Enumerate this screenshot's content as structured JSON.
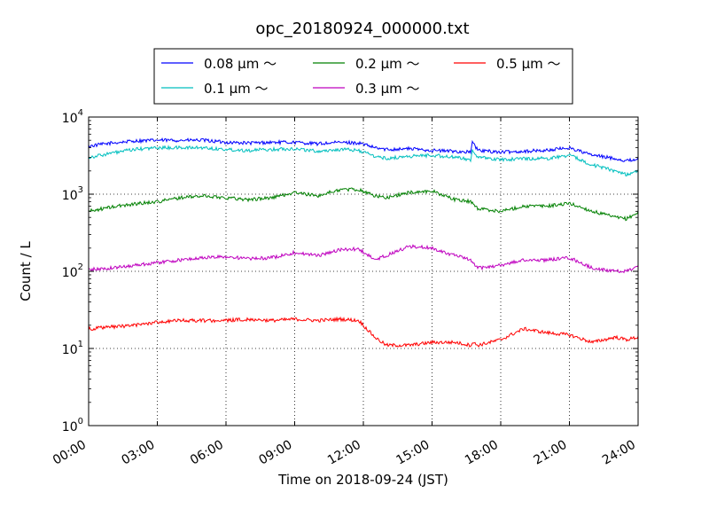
{
  "chart_data": {
    "type": "line",
    "title": "opc_20180924_000000.txt",
    "xlabel": "Time on 2018-09-24 (JST)",
    "ylabel": "Count / L",
    "xlim": [
      0,
      24
    ],
    "ylim": [
      1,
      10000
    ],
    "yscale": "log",
    "grid": true,
    "legend_position": "top-center",
    "x_ticks": [
      "00:00",
      "03:00",
      "06:00",
      "09:00",
      "12:00",
      "15:00",
      "18:00",
      "21:00",
      "24:00"
    ],
    "y_ticks": [
      {
        "base": "10",
        "exp": "0"
      },
      {
        "base": "10",
        "exp": "1"
      },
      {
        "base": "10",
        "exp": "2"
      },
      {
        "base": "10",
        "exp": "3"
      },
      {
        "base": "10",
        "exp": "4"
      }
    ],
    "x": [
      0,
      1,
      2,
      3,
      4,
      5,
      6,
      7,
      8,
      9,
      10,
      11,
      11.8,
      12.5,
      13,
      14,
      15,
      16,
      16.7,
      16.75,
      17,
      18,
      19,
      20,
      21,
      22,
      23,
      23.5,
      24
    ],
    "series": [
      {
        "name": "0.08 µm ～",
        "color": "#0000ff",
        "values": [
          4200,
          4600,
          4900,
          5000,
          5000,
          5000,
          4700,
          4600,
          4700,
          4700,
          4500,
          4700,
          4600,
          4000,
          3800,
          3900,
          3700,
          3600,
          3500,
          4800,
          3700,
          3500,
          3600,
          3700,
          4000,
          3200,
          2900,
          2700,
          2900
        ]
      },
      {
        "name": "0.1 µm ～",
        "color": "#00bfbf",
        "values": [
          3000,
          3400,
          3800,
          4000,
          4000,
          4000,
          3800,
          3700,
          3800,
          3900,
          3600,
          3800,
          3700,
          3100,
          2900,
          3100,
          3200,
          3000,
          2800,
          3800,
          3000,
          2800,
          2900,
          2900,
          3200,
          2400,
          2000,
          1800,
          2000
        ]
      },
      {
        "name": "0.2 µm ～",
        "color": "#008000",
        "values": [
          600,
          680,
          750,
          800,
          900,
          950,
          900,
          850,
          900,
          1050,
          950,
          1150,
          1150,
          950,
          900,
          1050,
          1100,
          850,
          800,
          780,
          650,
          600,
          700,
          700,
          760,
          600,
          500,
          480,
          580
        ]
      },
      {
        "name": "0.3 µm ～",
        "color": "#bf00bf",
        "values": [
          105,
          110,
          120,
          130,
          140,
          150,
          155,
          145,
          150,
          175,
          160,
          190,
          195,
          140,
          160,
          210,
          200,
          160,
          140,
          130,
          110,
          120,
          140,
          140,
          150,
          110,
          100,
          100,
          120
        ]
      },
      {
        "name": "0.5 µm ～",
        "color": "#ff0000",
        "values": [
          18,
          19,
          20,
          22,
          23,
          23,
          23,
          24,
          23,
          24,
          23,
          24,
          23,
          14,
          11,
          11,
          12,
          12,
          11,
          12,
          11,
          13,
          18,
          16,
          15,
          12,
          14,
          13,
          14
        ]
      }
    ]
  }
}
